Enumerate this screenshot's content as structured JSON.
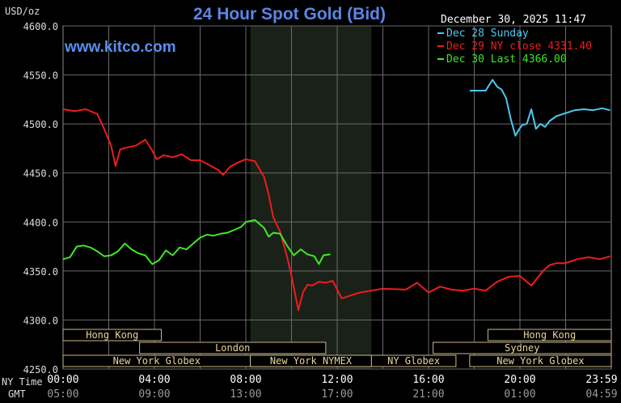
{
  "chart_data": {
    "type": "line",
    "title": "24 Hour Spot Gold (Bid)",
    "ylabel": "USD/oz",
    "watermark": "www.kitco.com",
    "timestamp": "December 30, 2025 11:47",
    "xlabel_ny": "NY Time",
    "xlabel_gmt": "GMT",
    "ylim": [
      4250,
      4600
    ],
    "xlim": [
      0,
      24
    ],
    "y_ticks": [
      "4600.0",
      "4550.0",
      "4500.0",
      "4450.0",
      "4400.0",
      "4350.0",
      "4300.0",
      "4250.0"
    ],
    "x_ticks_ny": [
      "00:00",
      "04:00",
      "08:00",
      "12:00",
      "16:00",
      "20:00",
      "23:59"
    ],
    "x_ticks_gmt": [
      "05:00",
      "09:00",
      "13:00",
      "17:00",
      "21:00",
      "01:00",
      "04:59"
    ],
    "grid": true,
    "legend_position": "top-right",
    "highlight_period": [
      8.2,
      13.5
    ],
    "series": [
      {
        "name": "Dec 28 Sunday",
        "color": "#4cc9f0",
        "x": [
          17.8,
          18.5,
          18.8,
          19.0,
          19.2,
          19.4,
          19.6,
          19.8,
          19.95,
          20.1,
          20.3,
          20.5,
          20.7,
          20.9,
          21.1,
          21.3,
          21.6,
          22.0,
          22.4,
          22.8,
          23.2,
          23.6,
          23.95
        ],
        "values": [
          4534,
          4534,
          4545,
          4538,
          4535,
          4526,
          4505,
          4488,
          4494,
          4499,
          4500,
          4515,
          4495,
          4500,
          4497,
          4503,
          4508,
          4511,
          4514,
          4515,
          4514,
          4516,
          4514
        ]
      },
      {
        "name": "Dec 29 NY close 4331.40",
        "color": "#ee1c1c",
        "x": [
          0.0,
          0.5,
          1.0,
          1.5,
          1.8,
          2.1,
          2.3,
          2.5,
          2.8,
          3.2,
          3.6,
          3.9,
          4.1,
          4.4,
          4.8,
          5.2,
          5.6,
          6.0,
          6.4,
          6.8,
          7.0,
          7.3,
          7.6,
          8.0,
          8.4,
          8.8,
          9.0,
          9.2,
          9.5,
          9.8,
          10.0,
          10.3,
          10.5,
          10.7,
          10.9,
          11.2,
          11.5,
          11.8,
          12.2,
          12.6,
          13.0,
          13.5,
          14.0,
          15.0,
          15.5,
          16.0,
          16.5,
          17.0,
          17.5,
          18.0,
          18.5,
          19.0,
          19.5,
          20.0,
          20.5,
          21.0,
          21.3,
          21.6,
          22.0,
          22.5,
          23.0,
          23.5,
          23.95
        ],
        "values": [
          4515,
          4513,
          4515,
          4510,
          4495,
          4478,
          4457,
          4474,
          4476,
          4478,
          4484,
          4473,
          4464,
          4468,
          4466,
          4469,
          4463,
          4463,
          4458,
          4453,
          4448,
          4456,
          4460,
          4464,
          4462,
          4446,
          4428,
          4405,
          4390,
          4365,
          4345,
          4310,
          4328,
          4336,
          4335,
          4339,
          4338,
          4340,
          4322,
          4325,
          4328,
          4330,
          4332,
          4331,
          4338,
          4328,
          4334,
          4331,
          4330,
          4332,
          4330,
          4339,
          4344,
          4345,
          4335,
          4350,
          4356,
          4358,
          4358,
          4362,
          4364,
          4362,
          4365
        ]
      },
      {
        "name": "Dec 30 Last 4366.00",
        "color": "#3ee825",
        "x": [
          0.0,
          0.3,
          0.6,
          0.9,
          1.2,
          1.5,
          1.8,
          2.1,
          2.4,
          2.7,
          3.0,
          3.3,
          3.6,
          3.9,
          4.2,
          4.5,
          4.8,
          5.1,
          5.4,
          5.7,
          6.0,
          6.3,
          6.6,
          6.9,
          7.2,
          7.5,
          7.8,
          8.0,
          8.2,
          8.4,
          8.6,
          8.8,
          9.0,
          9.2,
          9.5,
          9.8,
          10.1,
          10.4,
          10.7,
          11.0,
          11.2,
          11.4,
          11.7
        ],
        "values": [
          4362,
          4364,
          4375,
          4376,
          4374,
          4370,
          4365,
          4366,
          4370,
          4378,
          4372,
          4368,
          4366,
          4357,
          4361,
          4371,
          4366,
          4374,
          4372,
          4378,
          4384,
          4387,
          4386,
          4388,
          4389,
          4392,
          4395,
          4400,
          4401,
          4402,
          4398,
          4394,
          4385,
          4389,
          4388,
          4376,
          4366,
          4372,
          4367,
          4365,
          4357,
          4366,
          4367
        ]
      }
    ],
    "sessions": [
      {
        "label": "Hong Kong",
        "start": 0.0,
        "end": 4.3,
        "row": 0
      },
      {
        "label": "Hong Kong",
        "start": 18.6,
        "end": 24.0,
        "row": 0
      },
      {
        "label": "London",
        "start": 3.35,
        "end": 11.5,
        "row": 1
      },
      {
        "label": "Sydney",
        "start": 16.2,
        "end": 24.0,
        "row": 1
      },
      {
        "label": "New York Globex",
        "start": 0.0,
        "end": 8.2,
        "row": 2
      },
      {
        "label": "New York NYMEX",
        "start": 8.2,
        "end": 13.5,
        "row": 2
      },
      {
        "label": "NY Globex",
        "start": 13.5,
        "end": 17.2,
        "row": 2
      },
      {
        "label": "New York Globex",
        "start": 17.8,
        "end": 24.0,
        "row": 2
      }
    ]
  }
}
